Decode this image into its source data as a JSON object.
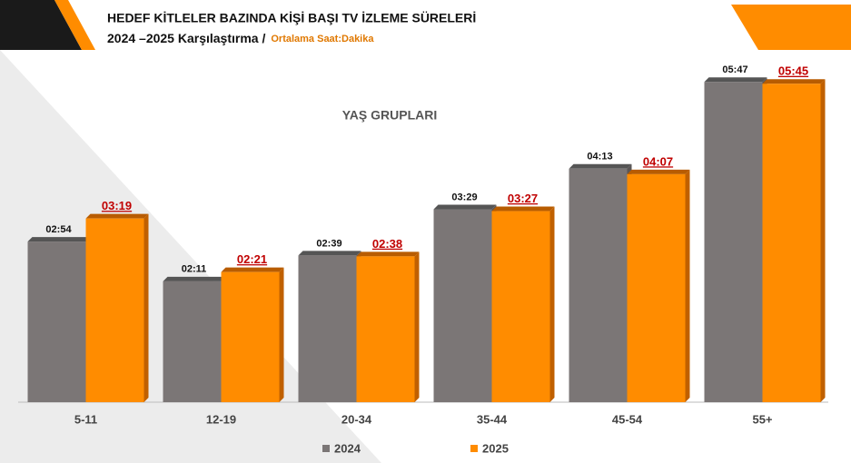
{
  "chart_data": {
    "type": "bar",
    "title": "HEDEF KİTLELER BAZINDA KİŞİ BAŞI TV İZLEME SÜRELERİ",
    "subtitle": "2024 –2025 Karşılaştırma /",
    "unit_note": "Ortalama Saat:Dakika",
    "x_label": "YAŞ GRUPLARI",
    "categories": [
      "5-11",
      "12-19",
      "20-34",
      "35-44",
      "45-54",
      "55+"
    ],
    "series": [
      {
        "name": "2024",
        "color": "#7b7676",
        "values": [
          174,
          131,
          159,
          209,
          253,
          347
        ],
        "value_labels": [
          "02:54",
          "02:11",
          "02:39",
          "03:29",
          "04:13",
          "05:47"
        ]
      },
      {
        "name": "2025",
        "color": "#ff8c00",
        "values": [
          199,
          141,
          158,
          207,
          247,
          345
        ],
        "value_labels": [
          "03:19",
          "02:21",
          "02:38",
          "03:27",
          "04:07",
          "05:45"
        ]
      }
    ],
    "ylim": [
      0,
      360
    ]
  }
}
